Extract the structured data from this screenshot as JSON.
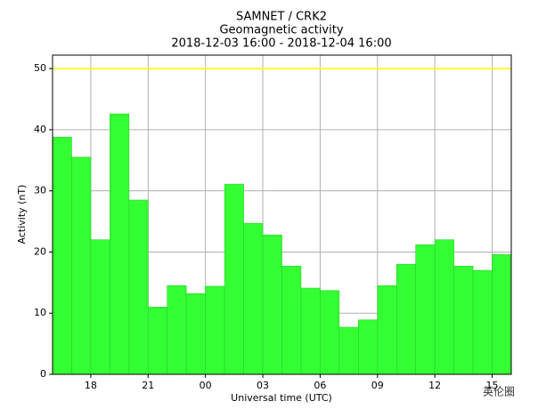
{
  "chart_data": {
    "type": "histogram",
    "title": "SAMNET / CRK2",
    "subtitle": "Geomagnetic activity",
    "period": "2018-12-03 16:00 - 2018-12-04 16:00",
    "xlabel": "Universal time (UTC)",
    "ylabel": "Activity (nT)",
    "bins": [
      0,
      1,
      2,
      3,
      4,
      5,
      6,
      7,
      8,
      9,
      10,
      11,
      12,
      13,
      14,
      15,
      16,
      17,
      18,
      19,
      20,
      21,
      22,
      23,
      24
    ],
    "values": [
      38.8,
      35.5,
      22.0,
      42.6,
      28.5,
      11.0,
      14.5,
      13.2,
      14.4,
      31.1,
      24.7,
      22.8,
      17.7,
      14.1,
      13.7,
      7.7,
      8.9,
      14.5,
      18.0,
      21.2,
      22.0,
      17.7,
      17.0,
      19.6
    ],
    "color": "#33ff33",
    "threshold": 50,
    "threshold_color": "#ffff33",
    "xlim": [
      0,
      24
    ],
    "xticks": [
      {
        "value": 2,
        "label": "18"
      },
      {
        "value": 5,
        "label": "21"
      },
      {
        "value": 8,
        "label": "00"
      },
      {
        "value": 11,
        "label": "03"
      },
      {
        "value": 14,
        "label": "06"
      },
      {
        "value": 17,
        "label": "09"
      },
      {
        "value": 20,
        "label": "12"
      },
      {
        "value": 23,
        "label": "15"
      }
    ],
    "ylim": [
      0,
      52.2
    ],
    "yticks": [
      0,
      10,
      20,
      30,
      40,
      50
    ],
    "grid": true
  },
  "watermark": "英伦圈"
}
